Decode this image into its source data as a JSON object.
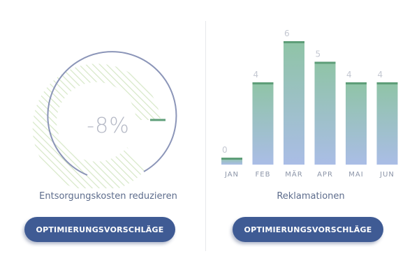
{
  "gauge": {
    "value_label": "-8%",
    "caption": "Entsorgungskosten reduzieren",
    "button_label": "OPTIMIERUNGSVORSCHLÄGE"
  },
  "chart_panel": {
    "caption": "Reklamationen",
    "button_label": "OPTIMIERUNGSVORSCHLÄGE"
  },
  "colors": {
    "accent": "#3f5b94",
    "bar_top": "#8fc4a6",
    "bar_bottom": "#aabde6",
    "bar_cap": "#5e9e78",
    "gauge_arc": "#8b95b8",
    "gauge_hatch": "#d7e8c8",
    "gauge_marker": "#5e9e78"
  },
  "chart_data": {
    "type": "bar",
    "categories": [
      "JAN",
      "FEB",
      "MÄR",
      "APR",
      "MAI",
      "JUN"
    ],
    "values": [
      0,
      4,
      6,
      5,
      4,
      4
    ],
    "value_labels": [
      "0",
      "4",
      "6",
      "5",
      "4",
      "4"
    ],
    "title": "Reklamationen",
    "xlabel": "",
    "ylabel": "",
    "ylim": [
      0,
      6
    ],
    "grid": false
  }
}
